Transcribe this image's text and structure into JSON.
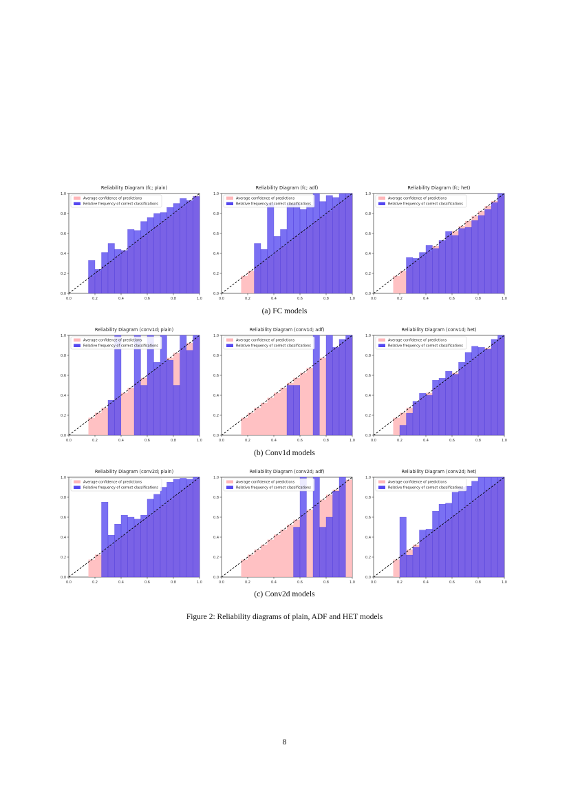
{
  "row_captions": [
    "(a) FC models",
    "(b) Conv1d models",
    "(c) Conv2d models"
  ],
  "figure_caption": "Figure 2: Reliability diagrams of plain, ADF and HET models",
  "page_number": "8",
  "colors": {
    "confidence": "#ffb6b9",
    "frequency": "#5548f0",
    "diagonal": "#000000"
  },
  "chart_data": [
    {
      "type": "bar",
      "title": "Reliability Diagram (fc; plain)",
      "legend": [
        "Average confidence of predictions",
        "Relative frequency of correct classifications"
      ],
      "legend_position": "top-left",
      "xlim": [
        0,
        1
      ],
      "ylim": [
        0,
        1
      ],
      "x_ticks": [
        "0.0",
        "0.2",
        "0.4",
        "0.6",
        "0.8",
        "1.0"
      ],
      "y_ticks": [
        "0.0",
        "0.2",
        "0.4",
        "0.6",
        "0.8",
        "1.0"
      ],
      "bin_edges_start": 0.15,
      "bin_width": 0.05,
      "frequency": [
        0.33,
        0.24,
        0.41,
        0.5,
        0.44,
        0.43,
        0.64,
        0.63,
        0.72,
        0.76,
        0.8,
        0.81,
        0.86,
        0.9,
        0.95,
        0.93,
        0.97
      ]
    },
    {
      "type": "bar",
      "title": "Reliability Diagram (fc; adf)",
      "legend": [
        "Average confidence of predictions",
        "Relative frequency of correct classifications"
      ],
      "legend_position": "top-left",
      "xlim": [
        0,
        1
      ],
      "ylim": [
        0,
        1
      ],
      "x_ticks": [
        "0.0",
        "0.2",
        "0.4",
        "0.6",
        "0.8",
        "1.0"
      ],
      "y_ticks": [
        "0.0",
        "0.2",
        "0.4",
        "0.6",
        "0.8",
        "1.0"
      ],
      "bin_edges_start": 0.15,
      "bin_width": 0.05,
      "frequency": [
        0.0,
        0.0,
        0.5,
        0.44,
        0.9,
        0.57,
        0.64,
        0.9,
        0.9,
        0.84,
        0.88,
        1.0,
        0.92,
        0.98,
        0.96,
        1.0,
        1.0
      ]
    },
    {
      "type": "bar",
      "title": "Reliability Diagram (fc; het)",
      "legend": [
        "Average confidence of predictions",
        "Relative frequency of correct classifications"
      ],
      "legend_position": "top-left",
      "xlim": [
        0,
        1
      ],
      "ylim": [
        0,
        1
      ],
      "x_ticks": [
        "0.0",
        "0.2",
        "0.4",
        "0.6",
        "0.8",
        "1.0"
      ],
      "y_ticks": [
        "0.0",
        "0.2",
        "0.4",
        "0.6",
        "0.8",
        "1.0"
      ],
      "bin_edges_start": 0.15,
      "bin_width": 0.05,
      "frequency": [
        0.0,
        0.0,
        0.36,
        0.35,
        0.41,
        0.48,
        0.45,
        0.53,
        0.62,
        0.58,
        0.65,
        0.66,
        0.73,
        0.78,
        0.84,
        0.91,
        1.0
      ]
    },
    {
      "type": "bar",
      "title": "Reliability Diagram (conv1d; plain)",
      "legend": [
        "Average confidence of predictions",
        "Relative frequency of correct classifications"
      ],
      "legend_position": "top-left",
      "xlim": [
        0,
        1
      ],
      "ylim": [
        0,
        1
      ],
      "x_ticks": [
        "0.0",
        "0.2",
        "0.4",
        "0.6",
        "0.8",
        "1.0"
      ],
      "y_ticks": [
        "0.0",
        "0.2",
        "0.4",
        "0.6",
        "0.8",
        "1.0"
      ],
      "bin_edges_start": 0.15,
      "bin_width": 0.05,
      "frequency": [
        0.0,
        0.0,
        0.0,
        0.35,
        1.0,
        0.0,
        0.0,
        1.0,
        0.5,
        1.0,
        0.73,
        1.0,
        0.75,
        0.5,
        1.0,
        0.85,
        1.0
      ]
    },
    {
      "type": "bar",
      "title": "Reliability Diagram (conv1d; adf)",
      "legend": [
        "Average confidence of predictions",
        "Relative frequency of correct classifications"
      ],
      "legend_position": "top-left",
      "xlim": [
        0,
        1
      ],
      "ylim": [
        0,
        1
      ],
      "x_ticks": [
        "0.0",
        "0.2",
        "0.4",
        "0.6",
        "0.8",
        "1.0"
      ],
      "y_ticks": [
        "0.0",
        "0.2",
        "0.4",
        "0.6",
        "0.8",
        "1.0"
      ],
      "bin_edges_start": 0.15,
      "bin_width": 0.05,
      "frequency": [
        0.0,
        0.0,
        0.0,
        0.0,
        0.0,
        0.0,
        0.0,
        0.5,
        0.5,
        0.0,
        0.0,
        1.0,
        0.0,
        1.0,
        0.88,
        0.96,
        1.0
      ]
    },
    {
      "type": "bar",
      "title": "Reliability Diagram (conv1d; het)",
      "legend": [
        "Average confidence of predictions",
        "Relative frequency of correct classifications"
      ],
      "legend_position": "top-left",
      "xlim": [
        0,
        1
      ],
      "ylim": [
        0,
        1
      ],
      "x_ticks": [
        "0.0",
        "0.2",
        "0.4",
        "0.6",
        "0.8",
        "1.0"
      ],
      "y_ticks": [
        "0.0",
        "0.2",
        "0.4",
        "0.6",
        "0.8",
        "1.0"
      ],
      "bin_edges_start": 0.15,
      "bin_width": 0.05,
      "frequency": [
        0.0,
        0.1,
        0.22,
        0.34,
        0.42,
        0.4,
        0.55,
        0.57,
        0.64,
        0.61,
        0.73,
        0.83,
        0.89,
        0.88,
        0.86,
        0.96,
        1.0
      ]
    },
    {
      "type": "bar",
      "title": "Reliability Diagram (conv2d; plain)",
      "legend": [
        "Average confidence of predictions",
        "Relative frequency of correct classifications"
      ],
      "legend_position": "top-left",
      "xlim": [
        0,
        1
      ],
      "ylim": [
        0,
        1
      ],
      "x_ticks": [
        "0.0",
        "0.2",
        "0.4",
        "0.6",
        "0.8",
        "1.0"
      ],
      "y_ticks": [
        "0.0",
        "0.2",
        "0.4",
        "0.6",
        "0.8",
        "1.0"
      ],
      "bin_edges_start": 0.15,
      "bin_width": 0.05,
      "frequency": [
        0.0,
        0.0,
        0.75,
        0.42,
        0.53,
        0.62,
        0.6,
        0.58,
        0.62,
        0.78,
        0.83,
        0.9,
        0.95,
        0.98,
        0.99,
        0.98,
        1.0
      ]
    },
    {
      "type": "bar",
      "title": "Reliability Diagram (conv2d; adf)",
      "legend": [
        "Average confidence of predictions",
        "Relative frequency of correct classifications"
      ],
      "legend_position": "top-left",
      "xlim": [
        0,
        1
      ],
      "ylim": [
        0,
        1
      ],
      "x_ticks": [
        "0.0",
        "0.2",
        "0.4",
        "0.6",
        "0.8",
        "1.0"
      ],
      "y_ticks": [
        "0.0",
        "0.2",
        "0.4",
        "0.6",
        "0.8",
        "1.0"
      ],
      "bin_edges_start": 0.15,
      "bin_width": 0.05,
      "frequency": [
        0.0,
        0.0,
        0.0,
        0.0,
        0.0,
        0.0,
        0.0,
        0.0,
        0.5,
        1.0,
        0.0,
        1.0,
        0.5,
        0.6,
        0.86,
        1.0,
        0.0
      ]
    },
    {
      "type": "bar",
      "title": "Reliability Diagram (conv2d; het)",
      "legend": [
        "Average confidence of predictions",
        "Relative frequency of correct classifications"
      ],
      "legend_position": "top-left",
      "xlim": [
        0,
        1
      ],
      "ylim": [
        0,
        1
      ],
      "x_ticks": [
        "0.0",
        "0.2",
        "0.4",
        "0.6",
        "0.8",
        "1.0"
      ],
      "y_ticks": [
        "0.0",
        "0.2",
        "0.4",
        "0.6",
        "0.8",
        "1.0"
      ],
      "bin_edges_start": 0.15,
      "bin_width": 0.05,
      "frequency": [
        0.0,
        0.6,
        0.22,
        0.3,
        0.47,
        0.48,
        0.66,
        0.73,
        0.74,
        0.85,
        0.9,
        0.91,
        0.96,
        1.0,
        1.0,
        1.0,
        1.0
      ]
    }
  ]
}
